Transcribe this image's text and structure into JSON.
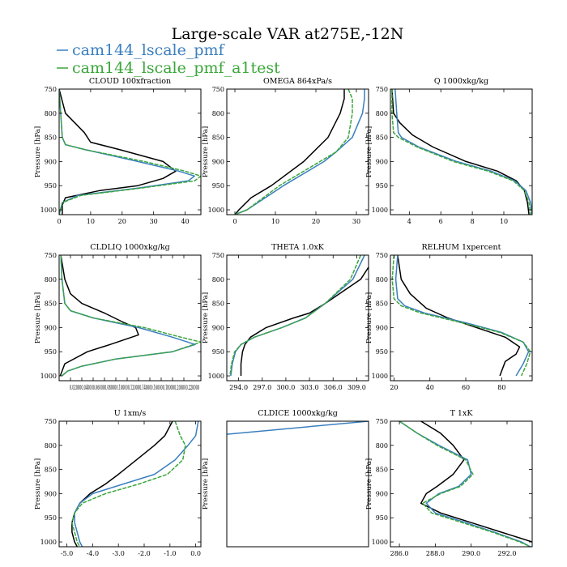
{
  "title": "Large-scale VAR at275E,-12N",
  "legend": [
    {
      "label": "cam144_lscale_pmf",
      "color": "#3a7fbf"
    },
    {
      "label": "cam144_lscale_pmf_a1test",
      "color": "#3aa63a"
    }
  ],
  "ref_color": "#000000",
  "y_axis_label": "Pressure [hPa]",
  "chart_data": [
    {
      "type": "line",
      "title": "CLOUD  100xfraction",
      "xlim": [
        0,
        45
      ],
      "ylim": [
        750,
        1010
      ],
      "xticks": [
        0,
        10,
        20,
        30,
        40
      ],
      "xtick_labels": [
        "0",
        "10",
        "20",
        "30",
        "40"
      ],
      "yticks": [
        750,
        800,
        850,
        900,
        950,
        1000
      ],
      "ytick_labels": [
        "750",
        "800",
        "850",
        "900",
        "950",
        "1000"
      ],
      "series": [
        {
          "name": "",
          "y": [
            750,
            800,
            820,
            840,
            860,
            875,
            900,
            920,
            935,
            950,
            960,
            975,
            990,
            1010
          ],
          "x": [
            0,
            2,
            5,
            8,
            10,
            19,
            33,
            37,
            33,
            25,
            13,
            2,
            1,
            1
          ]
        },
        {
          "name": "cam144_lscale_pmf",
          "y": [
            750,
            800,
            850,
            865,
            875,
            900,
            920,
            930,
            940,
            955,
            970,
            985,
            1010
          ],
          "x": [
            0,
            0.5,
            1,
            2,
            8,
            25,
            38,
            43,
            41,
            25,
            6,
            1,
            0
          ]
        },
        {
          "name": "cam144_lscale_pmf_a1test",
          "y": [
            750,
            800,
            850,
            865,
            875,
            900,
            920,
            930,
            940,
            955,
            970,
            985,
            1010
          ],
          "x": [
            0,
            0.5,
            1,
            2,
            8,
            27,
            40,
            45,
            43,
            26,
            7,
            1,
            0
          ]
        }
      ]
    },
    {
      "type": "line",
      "title": "OMEGA  864xPa/s",
      "xlim": [
        -2,
        33
      ],
      "ylim": [
        750,
        1010
      ],
      "xticks": [
        0,
        10,
        20,
        30
      ],
      "xtick_labels": [
        "0",
        "10",
        "20",
        "30"
      ],
      "yticks": [
        750,
        800,
        850,
        900,
        950,
        1000
      ],
      "ytick_labels": [
        "750",
        "800",
        "850",
        "900",
        "950",
        "1000"
      ],
      "series": [
        {
          "name": "",
          "y": [
            750,
            770,
            800,
            850,
            900,
            950,
            975,
            1000,
            1010
          ],
          "x": [
            27,
            27,
            26,
            23,
            17,
            9,
            4,
            1,
            0
          ]
        },
        {
          "name": "cam144_lscale_pmf",
          "y": [
            750,
            770,
            800,
            850,
            880,
            900,
            950,
            1000,
            1010
          ],
          "x": [
            32,
            32,
            31.5,
            29,
            25,
            22,
            12,
            3,
            0
          ]
        },
        {
          "name": "cam144_lscale_pmf_a1test",
          "y": [
            750,
            770,
            800,
            850,
            880,
            900,
            950,
            1000,
            1010
          ],
          "x": [
            28,
            29,
            29,
            28,
            25,
            21,
            11,
            3,
            0
          ]
        }
      ]
    },
    {
      "type": "line",
      "title": "Q  1000xkg/kg",
      "xlim": [
        2.8,
        11.8
      ],
      "ylim": [
        750,
        1010
      ],
      "xticks": [
        4,
        6,
        8,
        10
      ],
      "xtick_labels": [
        "4",
        "6",
        "8",
        "10"
      ],
      "yticks": [
        750,
        800,
        850,
        900,
        950,
        1000
      ],
      "ytick_labels": [
        "750",
        "800",
        "850",
        "900",
        "950",
        "1000"
      ],
      "series": [
        {
          "name": "",
          "y": [
            750,
            800,
            820,
            845,
            870,
            900,
            920,
            940,
            960,
            985,
            1010
          ],
          "x": [
            2.9,
            3.0,
            3.4,
            4.2,
            5.5,
            7.6,
            9.6,
            10.8,
            11.3,
            11.5,
            11.6
          ]
        },
        {
          "name": "cam144_lscale_pmf",
          "y": [
            750,
            800,
            840,
            850,
            870,
            900,
            920,
            940,
            960,
            985,
            1010
          ],
          "x": [
            3.1,
            3.2,
            3.3,
            3.5,
            4.6,
            7.0,
            9.2,
            10.7,
            11.4,
            11.7,
            11.8
          ]
        },
        {
          "name": "cam144_lscale_pmf_a1test",
          "y": [
            750,
            800,
            840,
            850,
            870,
            900,
            920,
            940,
            960,
            985,
            1010
          ],
          "x": [
            2.9,
            2.9,
            3.0,
            3.3,
            4.5,
            6.8,
            9.0,
            10.6,
            11.3,
            11.6,
            11.7
          ]
        }
      ]
    },
    {
      "type": "line",
      "title": "CLDLIQ  1000xkg/kg",
      "xlim": [
        0,
        0.25
      ],
      "ylim": [
        750,
        1010
      ],
      "xticks": [
        0.02,
        0.04,
        0.06,
        0.08,
        0.1,
        0.12,
        0.14,
        0.16,
        0.18,
        0.2,
        0.22
      ],
      "xtick_labels": [
        "0.02",
        "0.04",
        "0.06",
        "0.08",
        "0.10",
        "0.12",
        "0.14",
        "0.16",
        "0.18",
        "0.20",
        "0.22"
      ],
      "x_tick_strip": "0.020000.040000.060000.080000.100000.120000.140000.160000.180000.200000.220000",
      "yticks": [
        750,
        800,
        850,
        900,
        950,
        1000
      ],
      "ytick_labels": [
        "750",
        "800",
        "850",
        "900",
        "950",
        "1000"
      ],
      "series": [
        {
          "name": "",
          "y": [
            750,
            800,
            830,
            850,
            870,
            890,
            900,
            915,
            935,
            950,
            975,
            1000
          ],
          "x": [
            0.003,
            0.01,
            0.02,
            0.04,
            0.08,
            0.115,
            0.135,
            0.14,
            0.09,
            0.05,
            0.01,
            0.002
          ]
        },
        {
          "name": "cam144_lscale_pmf",
          "y": [
            750,
            800,
            850,
            865,
            880,
            900,
            920,
            935,
            950,
            965,
            980,
            990,
            1000
          ],
          "x": [
            0.003,
            0.005,
            0.01,
            0.02,
            0.06,
            0.14,
            0.2,
            0.24,
            0.2,
            0.1,
            0.04,
            0.015,
            0.005
          ]
        },
        {
          "name": "cam144_lscale_pmf_a1test",
          "y": [
            750,
            800,
            850,
            865,
            880,
            900,
            920,
            930,
            950,
            965,
            980,
            990,
            1000
          ],
          "x": [
            0.003,
            0.005,
            0.01,
            0.02,
            0.06,
            0.15,
            0.215,
            0.25,
            0.2,
            0.1,
            0.04,
            0.015,
            0.005
          ]
        }
      ]
    },
    {
      "type": "line",
      "title": "THETA  1.0xK",
      "xlim": [
        292.5,
        310.5
      ],
      "ylim": [
        750,
        1010
      ],
      "xticks": [
        294,
        297,
        300,
        303,
        306,
        309
      ],
      "xtick_labels": [
        "294.0",
        "297.0",
        "300.0",
        "303.0",
        "306.0",
        "309.0"
      ],
      "yticks": [
        750,
        800,
        850,
        900,
        950,
        1000
      ],
      "ytick_labels": [
        "750",
        "800",
        "850",
        "900",
        "950",
        "1000"
      ],
      "series": [
        {
          "name": "",
          "y": [
            775,
            800,
            850,
            870,
            880,
            900,
            920,
            935,
            950,
            975,
            1000
          ],
          "x": [
            310.5,
            309.5,
            305,
            303,
            301,
            297.5,
            295.5,
            294.8,
            294.5,
            294.3,
            294.3
          ]
        },
        {
          "name": "cam144_lscale_pmf",
          "y": [
            750,
            800,
            850,
            880,
            900,
            920,
            935,
            950,
            975,
            1000
          ],
          "x": [
            310,
            308.5,
            305,
            302.5,
            299.5,
            296,
            294.3,
            293.6,
            293.2,
            293
          ]
        },
        {
          "name": "cam144_lscale_pmf_a1test",
          "y": [
            750,
            800,
            850,
            880,
            900,
            920,
            935,
            950,
            975,
            1000
          ],
          "x": [
            309.5,
            308.2,
            305,
            302.5,
            299.5,
            296,
            294.3,
            293.5,
            293.1,
            292.9
          ]
        }
      ]
    },
    {
      "type": "line",
      "title": "RELHUM  1xpercent",
      "xlim": [
        18,
        97
      ],
      "ylim": [
        750,
        1010
      ],
      "xticks": [
        20,
        40,
        60,
        80
      ],
      "xtick_labels": [
        "20",
        "40",
        "60",
        "80"
      ],
      "yticks": [
        750,
        800,
        850,
        900,
        950,
        1000
      ],
      "ytick_labels": [
        "750",
        "800",
        "850",
        "900",
        "950",
        "1000"
      ],
      "series": [
        {
          "name": "",
          "y": [
            750,
            800,
            830,
            860,
            880,
            900,
            920,
            940,
            955,
            970,
            1000
          ],
          "x": [
            22,
            24,
            29,
            38,
            50,
            66,
            82,
            90,
            88,
            82,
            79
          ]
        },
        {
          "name": "cam144_lscale_pmf",
          "y": [
            750,
            800,
            840,
            855,
            870,
            890,
            910,
            930,
            950,
            975,
            1000
          ],
          "x": [
            22,
            21,
            22,
            26,
            37,
            60,
            80,
            92,
            95,
            92,
            88
          ]
        },
        {
          "name": "cam144_lscale_pmf_a1test",
          "y": [
            750,
            800,
            840,
            855,
            870,
            890,
            910,
            930,
            950,
            975,
            1000
          ],
          "x": [
            20,
            19,
            20,
            24,
            35,
            58,
            79,
            92,
            96,
            94,
            91
          ]
        }
      ]
    },
    {
      "type": "line",
      "title": "U  1xm/s",
      "xlim": [
        -5.3,
        0.2
      ],
      "ylim": [
        750,
        1010
      ],
      "xticks": [
        -5,
        -4,
        -3,
        -2,
        -1,
        0
      ],
      "xtick_labels": [
        "-5.0",
        "-4.0",
        "-3.0",
        "-2.0",
        "-1.0",
        "0.0"
      ],
      "yticks": [
        750,
        800,
        850,
        900,
        950,
        1000
      ],
      "ytick_labels": [
        "750",
        "800",
        "850",
        "900",
        "950",
        "1000"
      ],
      "series": [
        {
          "name": "",
          "y": [
            750,
            780,
            800,
            830,
            860,
            880,
            900,
            920,
            940,
            960,
            980,
            1000,
            1010
          ],
          "x": [
            -0.9,
            -1.2,
            -1.6,
            -2.3,
            -3.0,
            -3.5,
            -4.1,
            -4.5,
            -4.7,
            -4.8,
            -4.8,
            -4.7,
            -4.6
          ]
        },
        {
          "name": "cam144_lscale_pmf",
          "y": [
            750,
            780,
            800,
            830,
            860,
            880,
            900,
            920,
            940,
            960,
            980,
            1000,
            1010
          ],
          "x": [
            0.1,
            0,
            -0.3,
            -0.8,
            -1.6,
            -2.8,
            -4.0,
            -4.5,
            -4.7,
            -4.7,
            -4.6,
            -4.5,
            -4.4
          ]
        },
        {
          "name": "cam144_lscale_pmf_a1test",
          "y": [
            750,
            780,
            800,
            830,
            860,
            880,
            900,
            920,
            940,
            960,
            980,
            1000,
            1010
          ],
          "x": [
            -0.8,
            -0.6,
            -0.4,
            -0.5,
            -1.1,
            -2.2,
            -3.5,
            -4.4,
            -4.7,
            -4.8,
            -4.7,
            -4.6,
            -4.5
          ]
        }
      ]
    },
    {
      "type": "line",
      "title": "CLDICE  1000xkg/kg",
      "xlim": [
        0,
        1
      ],
      "ylim": [
        750,
        1010
      ],
      "xticks": [],
      "xtick_labels": [],
      "yticks": [],
      "ytick_labels": [],
      "series": [
        {
          "name": "cam144_lscale_pmf",
          "y": [
            777,
            750
          ],
          "x": [
            0,
            1
          ]
        }
      ]
    },
    {
      "type": "line",
      "title": "T  1xK",
      "xlim": [
        285.5,
        293.4
      ],
      "ylim": [
        750,
        1010
      ],
      "xticks": [
        286,
        288,
        290,
        292
      ],
      "xtick_labels": [
        "286.0",
        "288.0",
        "290.0",
        "292.0"
      ],
      "yticks": [
        750,
        800,
        850,
        900,
        950,
        1000
      ],
      "ytick_labels": [
        "750",
        "800",
        "850",
        "900",
        "950",
        "1000"
      ],
      "series": [
        {
          "name": "",
          "y": [
            750,
            775,
            800,
            830,
            860,
            885,
            900,
            920,
            940,
            960,
            980,
            1000
          ],
          "x": [
            287.2,
            288.3,
            289,
            289.6,
            289,
            288.1,
            287.5,
            287.2,
            288.3,
            290,
            291.7,
            293.4
          ]
        },
        {
          "name": "cam144_lscale_pmf",
          "y": [
            750,
            775,
            800,
            830,
            860,
            885,
            900,
            920,
            940,
            960,
            980,
            1000,
            1010
          ],
          "x": [
            286,
            287,
            288.2,
            289.8,
            290,
            289.3,
            288.2,
            287.5,
            288,
            289.7,
            291.3,
            292.8,
            293.3
          ]
        },
        {
          "name": "cam144_lscale_pmf_a1test",
          "y": [
            750,
            775,
            800,
            830,
            860,
            885,
            900,
            920,
            940,
            960,
            980,
            1000,
            1010
          ],
          "x": [
            286,
            287,
            288.1,
            289.7,
            290.1,
            289.4,
            288.3,
            287.3,
            287.8,
            289.5,
            291.2,
            292.7,
            293.3
          ]
        }
      ]
    }
  ]
}
